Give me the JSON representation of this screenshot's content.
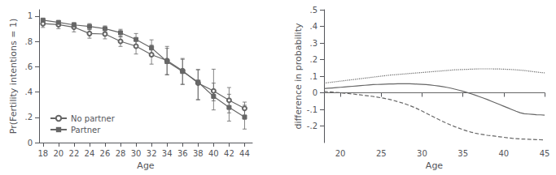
{
  "chart_data": [
    {
      "type": "line",
      "x": [
        18,
        20,
        22,
        24,
        26,
        28,
        30,
        32,
        34,
        36,
        38,
        40,
        42,
        44
      ],
      "series": [
        {
          "name": "No partner",
          "color": "#666666",
          "marker": "circle",
          "values": [
            0.94,
            0.932,
            0.912,
            0.862,
            0.858,
            0.8,
            0.762,
            0.695,
            0.648,
            0.568,
            0.47,
            0.408,
            0.335,
            0.27
          ],
          "lo": [
            0.91,
            0.9,
            0.875,
            0.825,
            0.82,
            0.76,
            0.7,
            0.62,
            0.535,
            0.46,
            0.338,
            0.33,
            0.235,
            0.185
          ],
          "hi": [
            0.965,
            0.96,
            0.945,
            0.895,
            0.895,
            0.84,
            0.82,
            0.77,
            0.76,
            0.665,
            0.575,
            0.58,
            0.435,
            0.32
          ]
        },
        {
          "name": "Partner",
          "color": "#666666",
          "marker": "square",
          "values": [
            0.968,
            0.95,
            0.93,
            0.918,
            0.9,
            0.868,
            0.815,
            0.748,
            0.64,
            0.562,
            0.478,
            0.365,
            0.278,
            0.202
          ],
          "lo": [
            0.955,
            0.935,
            0.91,
            0.892,
            0.875,
            0.835,
            0.76,
            0.682,
            0.538,
            0.46,
            0.34,
            0.258,
            0.17,
            0.107
          ],
          "hi": [
            0.978,
            0.963,
            0.948,
            0.94,
            0.922,
            0.895,
            0.862,
            0.812,
            0.745,
            0.658,
            0.578,
            0.47,
            0.382,
            0.295
          ]
        }
      ],
      "xlabel": "Age",
      "ylabel": "Pr(Fertility intentions = 1)",
      "xlim": [
        17.5,
        45
      ],
      "xticks": [
        18,
        20,
        22,
        24,
        26,
        28,
        30,
        32,
        34,
        36,
        38,
        40,
        42,
        44
      ],
      "ylim": [
        0,
        1.05
      ],
      "yticks": [
        0,
        {
          "value": 0.2,
          "label": ".2"
        },
        {
          "value": 0.4,
          "label": ".4"
        },
        {
          "value": 0.6,
          "label": ".6"
        },
        {
          "value": 0.8,
          "label": ".8"
        },
        1
      ],
      "legend": "lower left",
      "grid": false
    },
    {
      "type": "line",
      "x": [
        18.0,
        18.5,
        19.0,
        19.5,
        20.0,
        20.5,
        21.0,
        21.5,
        22.0,
        22.5,
        23.0,
        23.5,
        24.0,
        24.5,
        25.0,
        25.5,
        26.0,
        26.5,
        27.0,
        27.5,
        28.0,
        28.5,
        29.0,
        29.5,
        30.0,
        30.5,
        31.0,
        31.5,
        32.0,
        32.5,
        33.0,
        33.5,
        34.0,
        34.5,
        35.0,
        35.5,
        36.0,
        36.5,
        37.0,
        37.5,
        38.0,
        38.5,
        39.0,
        39.5,
        40.0,
        40.5,
        41.0,
        41.5,
        42.0,
        42.5,
        43.0,
        43.5,
        44.0,
        44.5,
        45.0
      ],
      "series": [
        {
          "color": "#666666",
          "line_style": "solid",
          "values": [
            0.025,
            0.027,
            0.029,
            0.031,
            0.033,
            0.035,
            0.037,
            0.039,
            0.041,
            0.043,
            0.045,
            0.047,
            0.049,
            0.05,
            0.051,
            0.052,
            0.053,
            0.053,
            0.054,
            0.054,
            0.054,
            0.054,
            0.053,
            0.052,
            0.051,
            0.049,
            0.047,
            0.044,
            0.041,
            0.037,
            0.033,
            0.028,
            0.022,
            0.016,
            0.009,
            0.002,
            -0.006,
            -0.014,
            -0.023,
            -0.032,
            -0.041,
            -0.051,
            -0.061,
            -0.071,
            -0.081,
            -0.091,
            -0.101,
            -0.111,
            -0.12,
            -0.126,
            -0.128,
            -0.13,
            -0.132,
            -0.133,
            -0.135
          ]
        },
        {
          "color": "#666666",
          "line_style": "dotted",
          "values": [
            0.058,
            0.061,
            0.064,
            0.067,
            0.07,
            0.073,
            0.076,
            0.079,
            0.082,
            0.085,
            0.088,
            0.091,
            0.094,
            0.097,
            0.1,
            0.103,
            0.106,
            0.108,
            0.11,
            0.112,
            0.114,
            0.116,
            0.118,
            0.12,
            0.122,
            0.124,
            0.126,
            0.128,
            0.13,
            0.132,
            0.134,
            0.136,
            0.138,
            0.139,
            0.14,
            0.141,
            0.142,
            0.143,
            0.144,
            0.144,
            0.144,
            0.144,
            0.143,
            0.143,
            0.142,
            0.141,
            0.14,
            0.138,
            0.136,
            0.134,
            0.131,
            0.128,
            0.125,
            0.122,
            0.12
          ]
        },
        {
          "color": "#666666",
          "line_style": "dashed",
          "values": [
            0.008,
            0.006,
            0.004,
            0.002,
            0.0,
            -0.003,
            -0.005,
            -0.007,
            -0.01,
            -0.013,
            -0.016,
            -0.019,
            -0.022,
            -0.026,
            -0.03,
            -0.035,
            -0.04,
            -0.046,
            -0.053,
            -0.06,
            -0.068,
            -0.077,
            -0.087,
            -0.098,
            -0.11,
            -0.123,
            -0.135,
            -0.148,
            -0.16,
            -0.172,
            -0.183,
            -0.194,
            -0.204,
            -0.213,
            -0.222,
            -0.23,
            -0.237,
            -0.243,
            -0.248,
            -0.252,
            -0.256,
            -0.259,
            -0.262,
            -0.265,
            -0.268,
            -0.271,
            -0.274,
            -0.276,
            -0.278,
            -0.279,
            -0.28,
            -0.281,
            -0.282,
            -0.283,
            -0.284
          ]
        }
      ],
      "hline": 0,
      "hline_color": "#666666",
      "xlabel": "Age",
      "ylabel": "difference in probability",
      "xlim": [
        18,
        45
      ],
      "xticks": [
        20,
        25,
        30,
        35,
        40,
        45
      ],
      "ylim": [
        -0.3,
        0.5
      ],
      "yticks": [
        {
          "value": -0.2,
          "label": "-.2"
        },
        {
          "value": -0.1,
          "label": "-.1"
        },
        0,
        {
          "value": 0.1,
          "label": ".1"
        },
        {
          "value": 0.2,
          "label": ".2"
        },
        {
          "value": 0.3,
          "label": ".3"
        },
        {
          "value": 0.4,
          "label": ".4"
        },
        {
          "value": 0.5,
          "label": ".5"
        }
      ],
      "grid": false
    }
  ]
}
